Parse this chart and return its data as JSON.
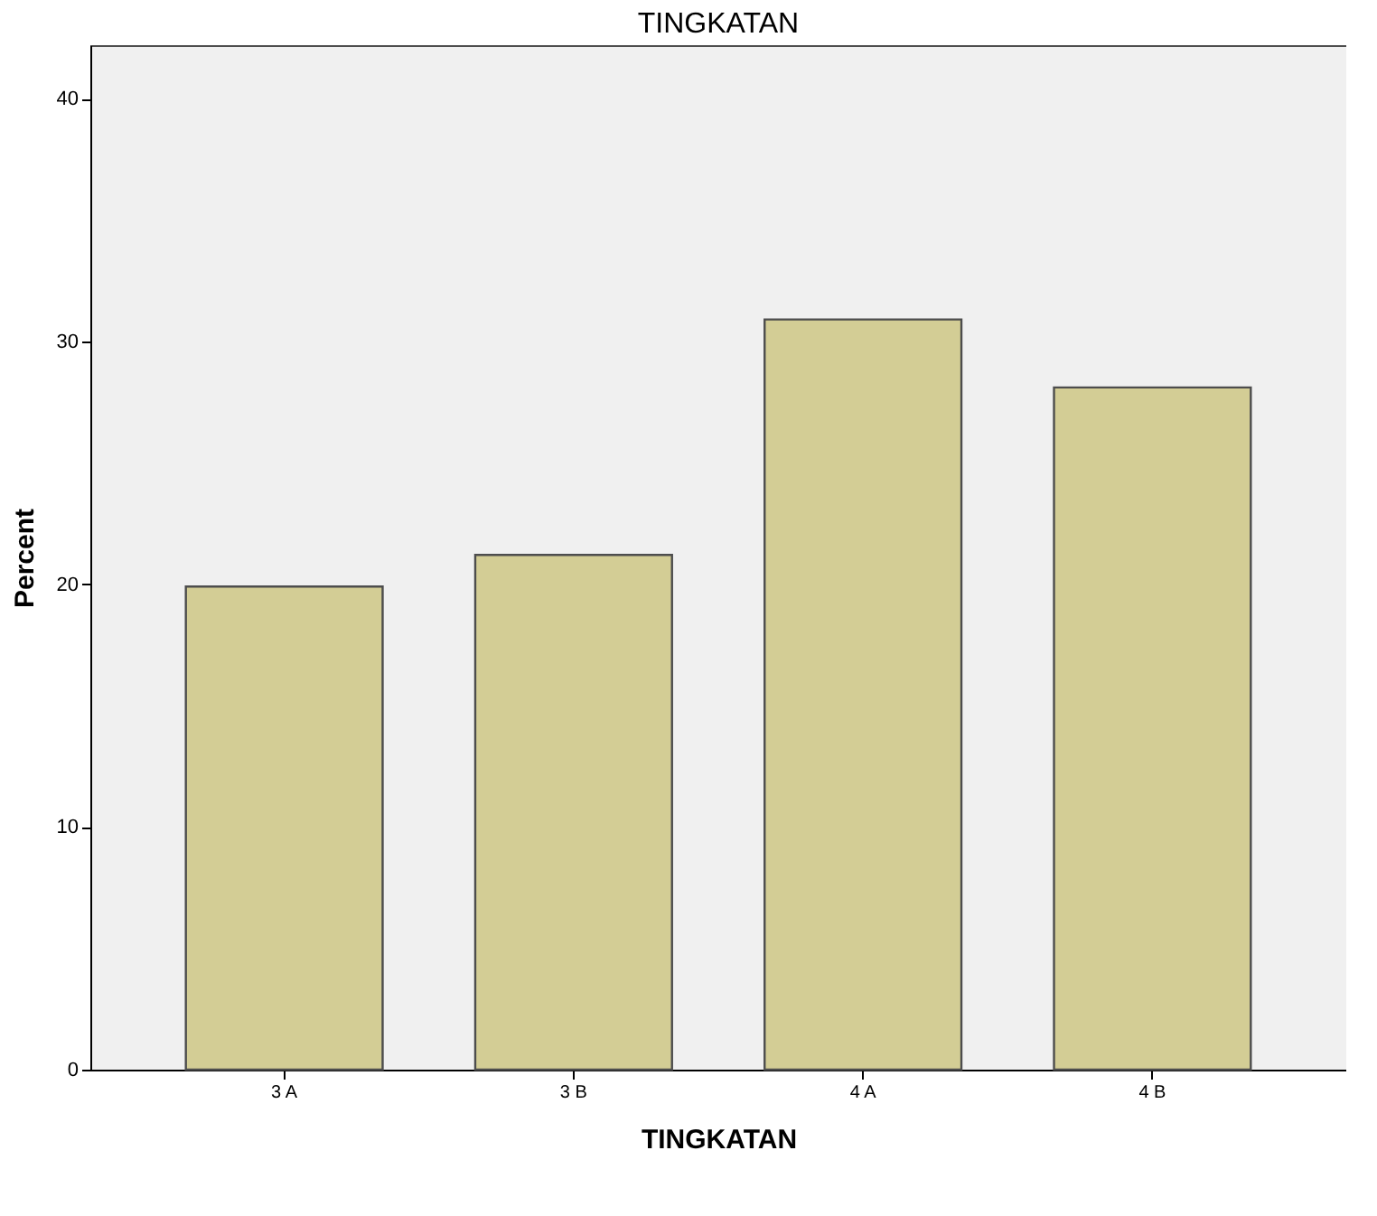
{
  "chart_data": {
    "type": "bar",
    "title": "TINGKATAN",
    "xlabel": "TINGKATAN",
    "ylabel": "Percent",
    "categories": [
      "3 A",
      "3 B",
      "4 A",
      "4 B"
    ],
    "values": [
      19.9,
      21.2,
      30.9,
      28.1
    ],
    "color": "#d3cd95",
    "ylim": [
      0,
      42.2
    ],
    "yticks": [
      0,
      10,
      20,
      30,
      40
    ],
    "grid": false
  }
}
